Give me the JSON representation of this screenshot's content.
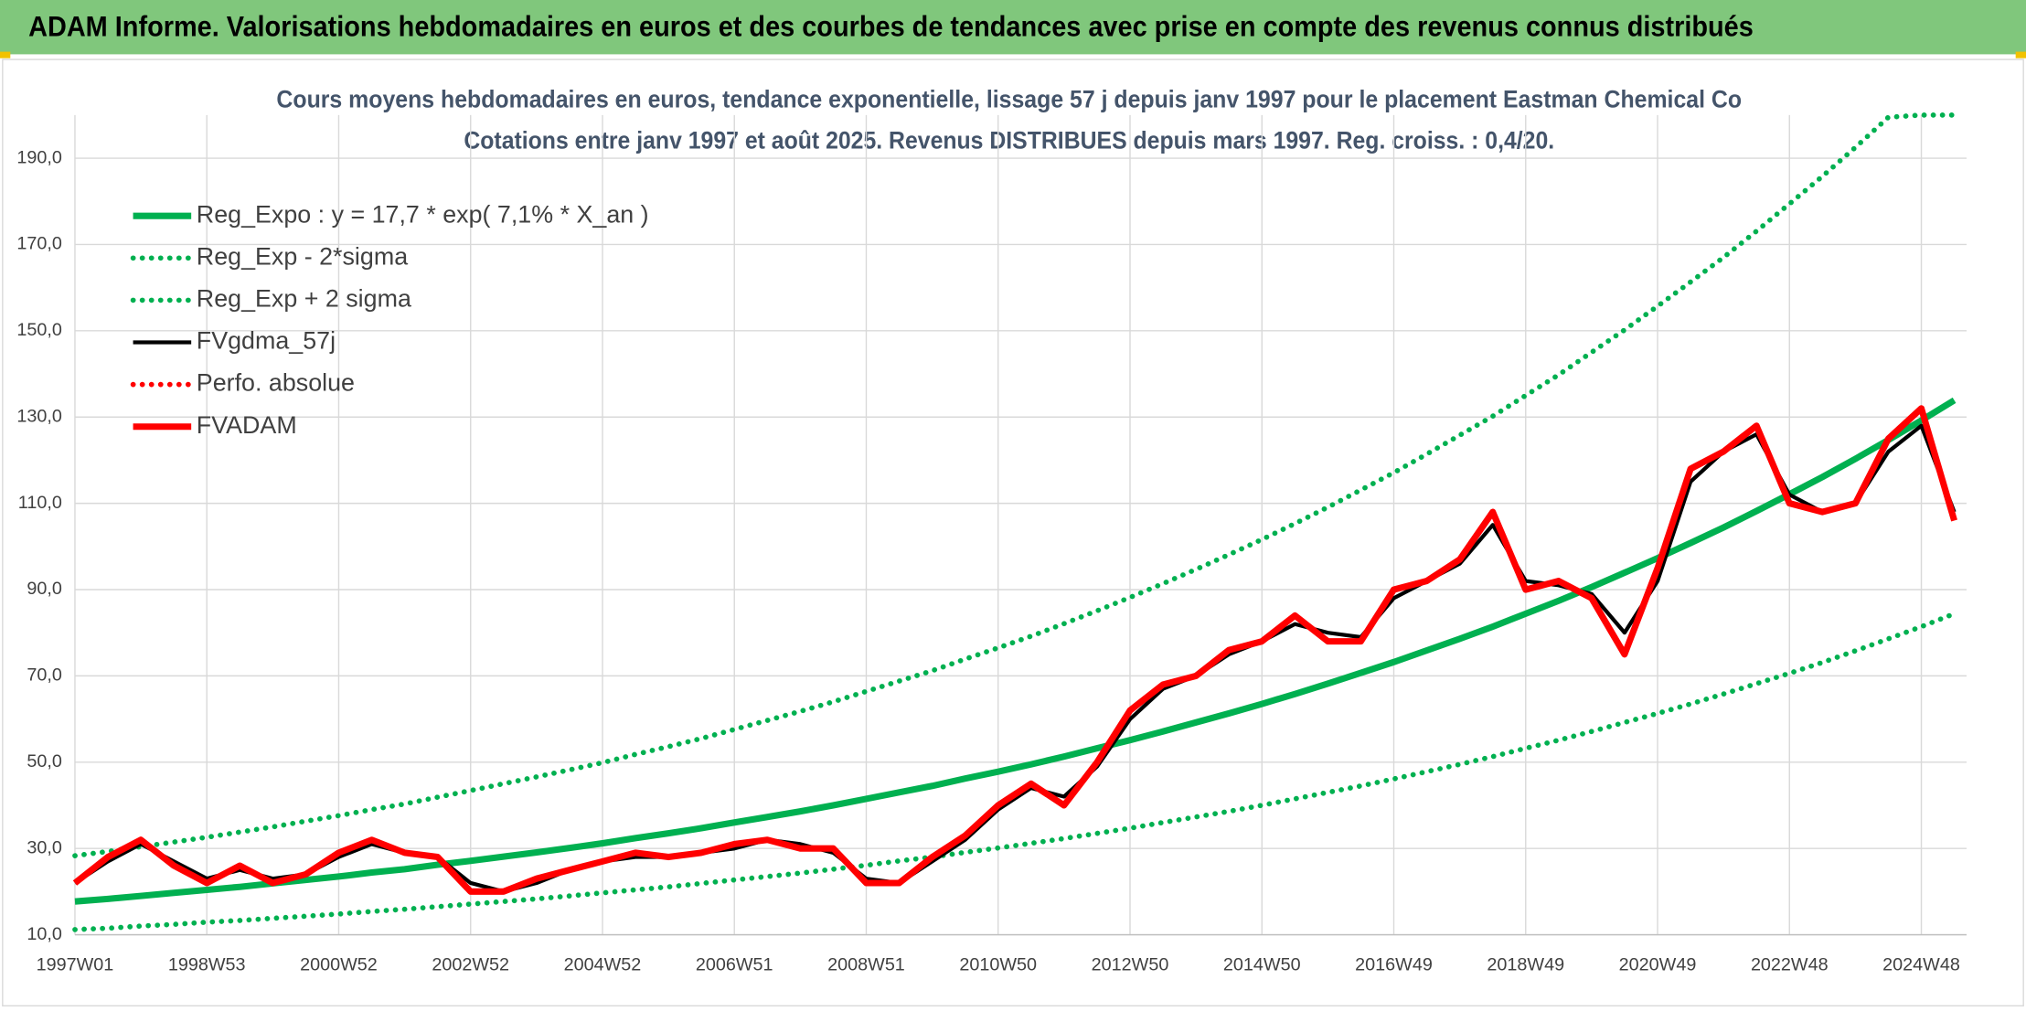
{
  "header": {
    "title": "ADAM Informe. Valorisations hebdomadaires en euros et des courbes de tendances avec prise en compte des revenus connus distribués"
  },
  "chart_data": {
    "type": "line",
    "title": "Cours moyens hebdomadaires en euros, tendance exponentielle, lissage 57 j depuis janv 1997 pour le placement Eastman Chemical Co",
    "subtitle": "Cotations entre janv 1997 et août 2025. Revenus DISTRIBUES depuis mars 1997. Reg. croiss. : 0,4/20.",
    "categories": [
      "1997W01",
      null,
      null,
      null,
      "1998W53",
      null,
      null,
      null,
      "2000W52",
      null,
      null,
      null,
      "2002W52",
      null,
      null,
      null,
      "2004W52",
      null,
      null,
      null,
      "2006W51",
      null,
      null,
      null,
      "2008W51",
      null,
      null,
      null,
      "2010W50",
      null,
      null,
      null,
      "2012W50",
      null,
      null,
      null,
      "2014W50",
      null,
      null,
      null,
      "2016W49",
      null,
      null,
      null,
      "2018W49",
      null,
      null,
      null,
      "2020W49",
      null,
      null,
      null,
      "2022W48",
      null,
      null,
      null,
      "2024W48",
      null
    ],
    "ylim": [
      10,
      200
    ],
    "yticks": [
      {
        "value": 10,
        "label": "10,0"
      },
      {
        "value": 30,
        "label": "30,0"
      },
      {
        "value": 50,
        "label": "50,0"
      },
      {
        "value": 70,
        "label": "70,0"
      },
      {
        "value": 90,
        "label": "90,0"
      },
      {
        "value": 110,
        "label": "110,0"
      },
      {
        "value": 130,
        "label": "130,0"
      },
      {
        "value": 150,
        "label": "150,0"
      },
      {
        "value": 170,
        "label": "170,0"
      },
      {
        "value": 190,
        "label": "190,0"
      }
    ],
    "grid": true,
    "legend": "upper left",
    "series": [
      {
        "name": "Reg_Expo : y = 17,7 * exp( 7,1% *  X_an )",
        "color": "#00b050",
        "style": "solid",
        "values": [
          17.7,
          18.3,
          19.0,
          19.7,
          20.4,
          21.1,
          21.9,
          22.7,
          23.5,
          24.4,
          25.2,
          26.2,
          27.1,
          28.1,
          29.1,
          30.1,
          31.2,
          32.4,
          33.5,
          34.7,
          36.0,
          37.3,
          38.6,
          40.0,
          41.5,
          43.0,
          44.5,
          46.2,
          47.8,
          49.5,
          51.3,
          53.2,
          55.1,
          57.1,
          59.2,
          61.3,
          63.5,
          65.8,
          68.2,
          70.7,
          73.2,
          75.9,
          78.6,
          81.4,
          84.4,
          87.4,
          90.6,
          93.9,
          97.3,
          100.8,
          104.4,
          108.2,
          112.1,
          116.1,
          120.3,
          124.7,
          129.2,
          133.9
        ]
      },
      {
        "name": "Reg_Exp - 2*sigma",
        "color": "#00b050",
        "style": "dotted",
        "values": [
          11.2,
          11.5,
          12.0,
          12.4,
          12.9,
          13.3,
          13.8,
          14.3,
          14.8,
          15.4,
          15.9,
          16.5,
          17.1,
          17.7,
          18.3,
          19.0,
          19.7,
          20.4,
          21.1,
          21.9,
          22.7,
          23.5,
          24.3,
          25.2,
          26.1,
          27.1,
          28.0,
          29.1,
          30.1,
          31.2,
          32.3,
          33.5,
          34.7,
          36.0,
          37.3,
          38.6,
          40.0,
          41.5,
          43.0,
          44.5,
          46.1,
          47.8,
          49.5,
          51.3,
          53.2,
          55.1,
          57.1,
          59.2,
          61.3,
          63.5,
          65.8,
          68.2,
          70.6,
          73.1,
          75.8,
          78.6,
          81.4,
          84.4
        ]
      },
      {
        "name": "Reg_Exp + 2 sigma",
        "color": "#00b050",
        "style": "dotted",
        "values": [
          28.3,
          29.3,
          30.4,
          31.5,
          32.6,
          33.8,
          35.0,
          36.3,
          37.6,
          39.0,
          40.3,
          41.9,
          43.4,
          45.0,
          46.6,
          48.2,
          49.9,
          51.8,
          53.6,
          55.5,
          57.6,
          59.7,
          61.8,
          64.0,
          66.4,
          68.8,
          71.2,
          73.9,
          76.5,
          79.2,
          82.1,
          85.1,
          88.2,
          91.4,
          94.7,
          98.1,
          101.6,
          105.3,
          109.1,
          113.1,
          117.1,
          121.4,
          125.8,
          130.2,
          135.0,
          139.8,
          145.0,
          150.2,
          155.7,
          161.3,
          167.0,
          173.1,
          179.4,
          185.8,
          192.5,
          199.5,
          200,
          200
        ]
      },
      {
        "name": "FVgdma_57j",
        "color": "#000000",
        "style": "solid",
        "values": [
          22,
          27,
          31,
          27,
          23,
          25,
          23,
          24,
          28,
          31,
          29,
          28,
          22,
          20,
          22,
          25,
          27,
          28,
          28,
          29,
          30,
          32,
          31,
          29,
          23,
          22,
          27,
          32,
          39,
          44,
          42,
          49,
          60,
          67,
          70,
          75,
          78,
          82,
          80,
          79,
          88,
          92,
          96,
          105,
          92,
          91,
          89,
          80,
          92,
          115,
          122,
          126,
          112,
          108,
          110,
          122,
          128,
          108
        ]
      },
      {
        "name": "Perfo. absolue",
        "color": "#ff0000",
        "style": "dotted",
        "values": [
          null,
          null,
          null,
          null,
          null,
          null,
          null,
          null,
          null,
          null,
          null,
          null,
          null,
          null,
          null,
          null,
          null,
          null,
          null,
          null,
          null,
          null,
          null,
          null,
          null,
          null,
          null,
          null,
          null,
          null,
          null,
          null,
          null,
          null,
          null,
          null,
          null,
          null,
          null,
          null,
          null,
          null,
          null,
          null,
          null,
          null,
          null,
          null,
          null,
          null,
          null,
          null,
          null,
          null,
          null,
          null,
          null,
          null
        ]
      },
      {
        "name": "FVADAM",
        "color": "#ff0000",
        "style": "solid",
        "values": [
          22,
          28,
          32,
          26,
          22,
          26,
          22,
          24,
          29,
          32,
          29,
          28,
          20,
          20,
          23,
          25,
          27,
          29,
          28,
          29,
          31,
          32,
          30,
          30,
          22,
          22,
          28,
          33,
          40,
          45,
          40,
          50,
          62,
          68,
          70,
          76,
          78,
          84,
          78,
          78,
          90,
          92,
          97,
          108,
          90,
          92,
          88,
          75,
          95,
          118,
          122,
          128,
          110,
          108,
          110,
          125,
          132,
          106
        ]
      }
    ]
  }
}
